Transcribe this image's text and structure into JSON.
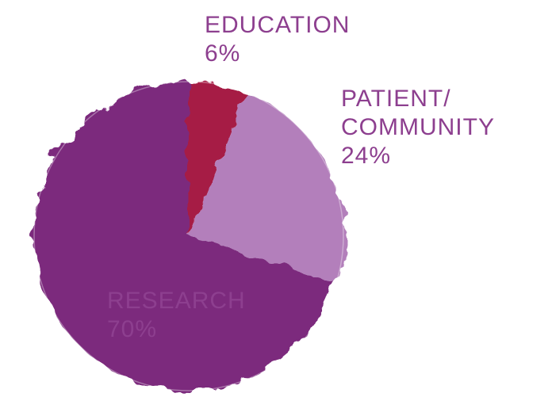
{
  "chart_data": {
    "type": "pie",
    "categories": [
      "EDUCATION",
      "PATIENT/ COMMUNITY",
      "RESEARCH"
    ],
    "values": [
      6,
      24,
      70
    ],
    "value_labels": [
      "6%",
      "24%",
      "70%"
    ],
    "colors": [
      "#a61d45",
      "#b37fbb",
      "#7b2b7d"
    ]
  }
}
